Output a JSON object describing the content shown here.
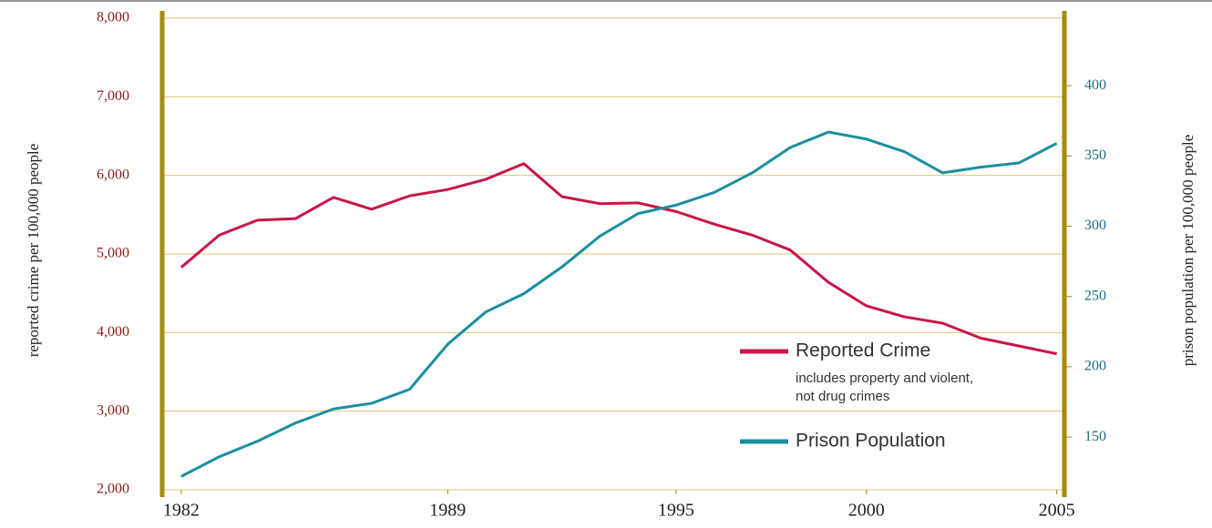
{
  "chart_data": {
    "type": "line",
    "ylabel": "reported crime per 100,000 people",
    "y2label": "prison population per 100,000 people",
    "x": [
      1982,
      1983,
      1984,
      1985,
      1986,
      1987,
      1988,
      1989,
      1990,
      1991,
      1992,
      1993,
      1994,
      1995,
      1996,
      1997,
      1998,
      1999,
      2000,
      2001,
      2002,
      2003,
      2004,
      2005
    ],
    "xlim": [
      1981.5,
      2005.2
    ],
    "xticks": [
      1982,
      1989,
      1995,
      2000,
      2005
    ],
    "ylim": [
      2000,
      8000
    ],
    "yticks": [
      {
        "value": 2000,
        "label": "2,000"
      },
      {
        "value": 3000,
        "label": "3,000"
      },
      {
        "value": 4000,
        "label": "4,000"
      },
      {
        "value": 5000,
        "label": "5,000"
      },
      {
        "value": 6000,
        "label": "6,000"
      },
      {
        "value": 7000,
        "label": "7,000"
      },
      {
        "value": 8000,
        "label": "8,000"
      }
    ],
    "y2lim": [
      112.5,
      448
    ],
    "y2ticks": [
      150,
      200,
      250,
      300,
      350,
      400
    ],
    "grid": true,
    "series": [
      {
        "name": "Reported Crime",
        "note": [
          "includes property and violent,",
          "not drug crimes"
        ],
        "color": "#c8174a",
        "values": [
          4830,
          5240,
          5430,
          5450,
          5720,
          5570,
          5740,
          5820,
          5950,
          6150,
          5730,
          5640,
          5650,
          5540,
          5380,
          5240,
          5050,
          4640,
          4340,
          4200,
          4120,
          3930,
          3830,
          3730
        ]
      },
      {
        "name": "Prison Population",
        "color": "#1a8fa0",
        "axis": "y2",
        "values": [
          122,
          136,
          147,
          160,
          170,
          174,
          184,
          216,
          239,
          252,
          271,
          293,
          309,
          315,
          324,
          338,
          356,
          367,
          362,
          353,
          338,
          342,
          345,
          359
        ]
      }
    ]
  }
}
